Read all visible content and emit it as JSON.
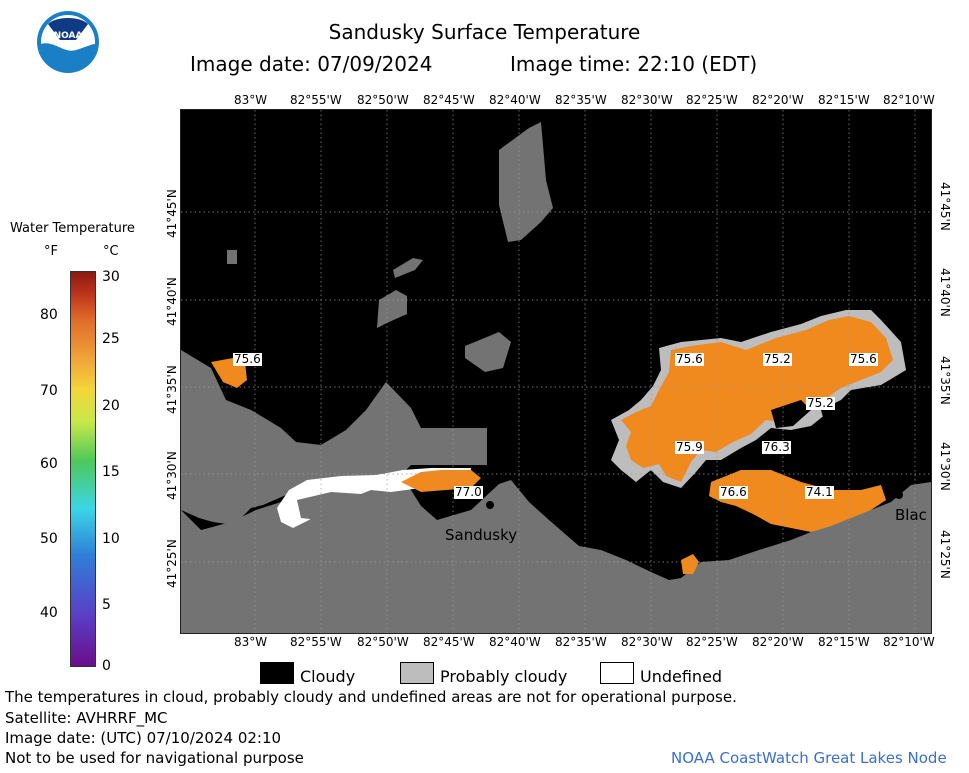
{
  "header": {
    "title": "Sandusky Surface Temperature",
    "image_date": "Image date: 07/09/2024",
    "image_time": "Image time: 22:10 (EDT)"
  },
  "colorbar": {
    "title": "Water Temperature",
    "unit_f": "°F",
    "unit_c": "°C",
    "f_ticks": [
      "80",
      "70",
      "60",
      "50",
      "40"
    ],
    "c_ticks": [
      "30",
      "25",
      "20",
      "15",
      "10",
      "5",
      "0"
    ]
  },
  "axes": {
    "lon_top": [
      "83°W",
      "82°55'W",
      "82°50'W",
      "82°45'W",
      "82°40'W",
      "82°35'W",
      "82°30'W",
      "82°25'W",
      "82°20'W",
      "82°15'W",
      "82°10'W"
    ],
    "lon_bottom": [
      "83°W",
      "82°55'W",
      "82°50'W",
      "82°45'W",
      "82°40'W",
      "82°35'W",
      "82°30'W",
      "82°25'W",
      "82°20'W",
      "82°15'W",
      "82°10'W"
    ],
    "lat_left": [
      "41°45'N",
      "41°40'N",
      "41°35'N",
      "41°30'N",
      "41°25'N"
    ],
    "lat_right": [
      "41°45'N",
      "41°40'N",
      "41°35'N",
      "41°30'N",
      "41°25'N"
    ]
  },
  "map": {
    "temperature_labels": [
      "75.6",
      "75.6",
      "75.2",
      "75.6",
      "75.2",
      "75.9",
      "76.3",
      "77.0",
      "76.6",
      "74.1"
    ],
    "place_labels": [
      "Sandusky",
      "Blac"
    ],
    "colors": {
      "cloud": "#000000",
      "land": "#737373",
      "probably_cloudy": "#bdbdbd",
      "undefined": "#ffffff",
      "warm_water": "#f08a1e"
    }
  },
  "legend": {
    "cloudy": "Cloudy",
    "probably_cloudy": "Probably cloudy",
    "undefined": "Undefined"
  },
  "footer": {
    "note": "The temperatures in cloud, probably cloudy and undefined areas are not for operational purpose.",
    "satellite": "Satellite: AVHRRF_MC",
    "utc_date": "Image date: (UTC) 07/10/2024  02:10",
    "nav_warning": "Not to be used for navigational purpose",
    "credit": "NOAA CoastWatch Great Lakes Node"
  },
  "logo": {
    "text": "NOAA"
  }
}
